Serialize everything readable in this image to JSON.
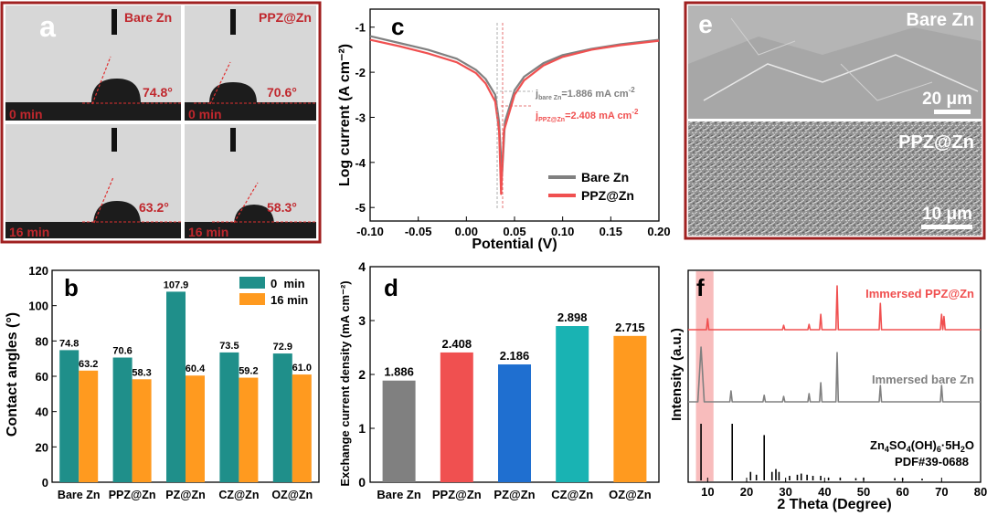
{
  "panels": {
    "a": {
      "letter": "a",
      "cells": [
        {
          "label": "Bare Zn",
          "angle": "74.8°",
          "time": "0 min"
        },
        {
          "label": "PPZ@Zn",
          "angle": "70.6°",
          "time": "0 min"
        },
        {
          "label": "",
          "angle": "63.2°",
          "time": "16 min"
        },
        {
          "label": "",
          "angle": "58.3°",
          "time": "16 min"
        }
      ]
    },
    "c": {
      "letter": "c",
      "xlabel": "Potential (V)",
      "ylabel": "Log current (A cm⁻²)",
      "xticks": [
        "-0.10",
        "-0.05",
        "0.00",
        "0.05",
        "0.10",
        "0.15",
        "0.20"
      ],
      "yticks": [
        "-1",
        "-2",
        "-3",
        "-4",
        "-5"
      ],
      "ann_bare": "j_bare Zn=1.886 mA cm⁻²",
      "ann_bare_main": "j",
      "ann_bare_sub": "bare Zn",
      "ann_bare_rest": "=1.886 mA cm",
      "ann_ppz_main": "j",
      "ann_ppz_sub": "PPZ@Zn",
      "ann_ppz_rest": "=2.408 mA cm",
      "sup": "-2",
      "legend": [
        "Bare Zn",
        "PPZ@Zn"
      ]
    },
    "e": {
      "letter": "e",
      "top_label": "Bare Zn",
      "top_scale": "20 μm",
      "bottom_label": "PPZ@Zn",
      "bottom_scale": "10 μm"
    },
    "f": {
      "letter": "f",
      "xlabel": "2 Theta (Degree)",
      "ylabel": "Intensity (a.u.)",
      "xticks": [
        "10",
        "20",
        "30",
        "40",
        "50",
        "60",
        "70",
        "80"
      ],
      "label_ppz": "Immersed PPZ@Zn",
      "label_bare": "Immersed bare Zn",
      "ref_formula": "Zn4SO4(OH)6·5H2O",
      "ref_pdf": "PDF#39-0688"
    }
  },
  "colors": {
    "teal": "#1f8f8a",
    "orange": "#ff9a1f",
    "gray": "#808080",
    "red": "#f05050",
    "blue": "#1f6fd0",
    "cyan": "#19b3b3",
    "darkred": "#c0272d",
    "frame": "#a02020"
  },
  "chart_data": [
    {
      "panel": "b",
      "type": "bar",
      "title": "b",
      "ylabel": "Contact angles (°)",
      "xlabel": "",
      "ylim": [
        0,
        120
      ],
      "yticks": [
        0,
        20,
        40,
        60,
        80,
        100,
        120
      ],
      "categories": [
        "Bare Zn",
        "PPZ@Zn",
        "PZ@Zn",
        "CZ@Zn",
        "OZ@Zn"
      ],
      "series": [
        {
          "name": "0  min",
          "values": [
            74.8,
            70.6,
            107.9,
            73.5,
            72.9
          ]
        },
        {
          "name": "16 min",
          "values": [
            63.2,
            58.3,
            60.4,
            59.2,
            61.0
          ]
        }
      ],
      "data_labels": [
        [
          "74.8",
          "70.6",
          "107.9",
          "73.5",
          "72.9"
        ],
        [
          "63.2",
          "58.3",
          "60.4",
          "59.2",
          "61.0"
        ]
      ],
      "legend": "top-right"
    },
    {
      "panel": "d",
      "type": "bar",
      "title": "d",
      "ylabel": "Exchange current density (mA cm⁻²)",
      "xlabel": "",
      "ylim": [
        0,
        4
      ],
      "yticks": [
        0,
        1,
        2,
        3,
        4
      ],
      "categories": [
        "Bare Zn",
        "PPZ@Zn",
        "PZ@Zn",
        "CZ@Zn",
        "OZ@Zn"
      ],
      "values": [
        1.886,
        2.408,
        2.186,
        2.898,
        2.715
      ],
      "data_labels": [
        "1.886",
        "2.408",
        "2.186",
        "2.898",
        "2.715"
      ]
    },
    {
      "panel": "c",
      "type": "line",
      "title": "c",
      "xlabel": "Potential (V)",
      "ylabel": "Log current (A cm⁻²)",
      "xlim": [
        -0.1,
        0.2
      ],
      "ylim": [
        -5.3,
        -0.6
      ],
      "series": [
        {
          "name": "Bare Zn",
          "x": [
            -0.1,
            -0.07,
            -0.04,
            -0.01,
            0.01,
            0.02,
            0.03,
            0.034,
            0.037,
            0.04,
            0.05,
            0.06,
            0.08,
            0.1,
            0.13,
            0.16,
            0.2
          ],
          "y": [
            -1.2,
            -1.35,
            -1.5,
            -1.7,
            -1.95,
            -2.15,
            -2.5,
            -3.1,
            -4.3,
            -3.1,
            -2.4,
            -2.1,
            -1.8,
            -1.62,
            -1.48,
            -1.38,
            -1.28
          ]
        },
        {
          "name": "PPZ@Zn",
          "x": [
            -0.1,
            -0.07,
            -0.04,
            -0.01,
            0.01,
            0.02,
            0.03,
            0.034,
            0.036,
            0.039,
            0.05,
            0.06,
            0.08,
            0.1,
            0.13,
            0.16,
            0.2
          ],
          "y": [
            -1.28,
            -1.42,
            -1.58,
            -1.78,
            -2.02,
            -2.25,
            -2.65,
            -3.3,
            -4.7,
            -3.3,
            -2.5,
            -2.18,
            -1.85,
            -1.66,
            -1.5,
            -1.4,
            -1.3
          ]
        }
      ],
      "legend": "bottom-right"
    },
    {
      "panel": "f",
      "type": "line",
      "title": "f",
      "xlabel": "2 Theta (Degree)",
      "ylabel": "Intensity (a.u.)",
      "xlim": [
        5,
        80
      ],
      "series": [
        {
          "name": "Immersed PPZ@Zn",
          "peaks": [
            [
              10,
              0.25
            ],
            [
              29.5,
              0.1
            ],
            [
              36,
              0.12
            ],
            [
              39,
              0.35
            ],
            [
              43.2,
              1.0
            ],
            [
              54.3,
              0.6
            ],
            [
              70,
              0.35
            ],
            [
              70.6,
              0.3
            ]
          ]
        },
        {
          "name": "Immersed bare Zn",
          "peaks": [
            [
              8.3,
              1.0
            ],
            [
              16,
              0.2
            ],
            [
              24.5,
              0.12
            ],
            [
              29.5,
              0.1
            ],
            [
              36,
              0.15
            ],
            [
              39,
              0.35
            ],
            [
              43.2,
              0.9
            ],
            [
              54.3,
              0.3
            ],
            [
              70,
              0.3
            ]
          ]
        },
        {
          "name": "Zn4SO4(OH)6·5H2O PDF#39-0688",
          "peaks": [
            [
              8.3,
              1.0
            ],
            [
              16.3,
              1.0
            ],
            [
              24.5,
              0.8
            ],
            [
              21,
              0.15
            ],
            [
              22.5,
              0.1
            ],
            [
              26.5,
              0.15
            ],
            [
              27.5,
              0.2
            ],
            [
              28.3,
              0.15
            ],
            [
              31,
              0.08
            ],
            [
              33,
              0.1
            ],
            [
              34,
              0.12
            ],
            [
              35.5,
              0.1
            ],
            [
              37,
              0.08
            ],
            [
              39,
              0.08
            ],
            [
              41,
              0.05
            ],
            [
              44,
              0.05
            ],
            [
              48,
              0.04
            ],
            [
              50,
              0.05
            ],
            [
              58,
              0.04
            ],
            [
              60,
              0.04
            ],
            [
              65,
              0.03
            ]
          ]
        }
      ],
      "highlight_range": [
        7,
        11.5
      ]
    }
  ]
}
